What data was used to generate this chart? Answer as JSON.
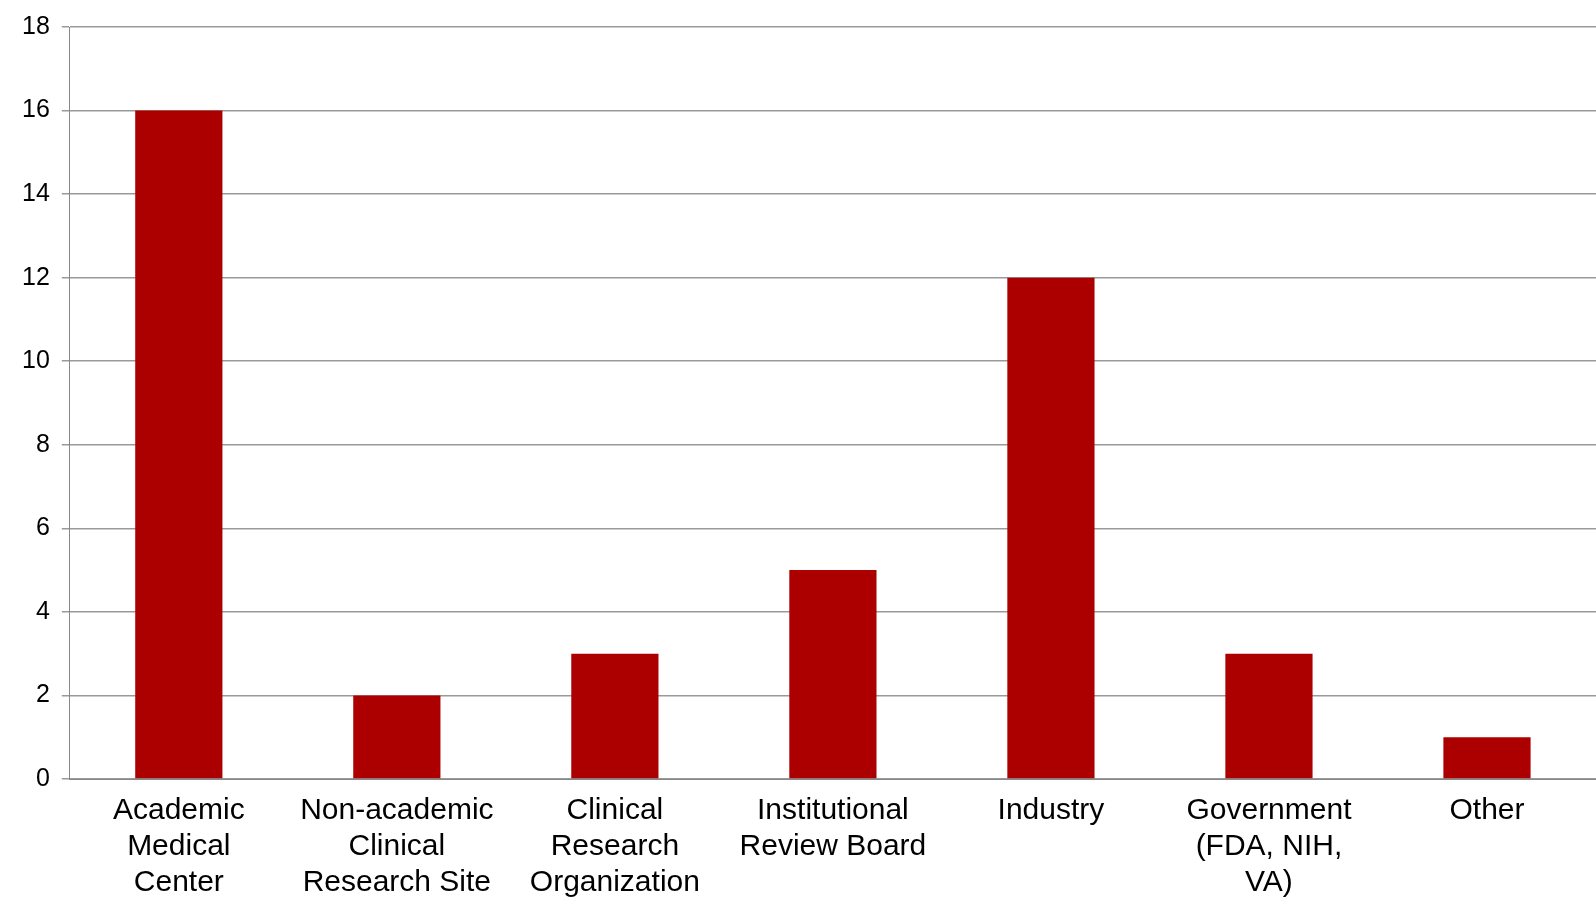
{
  "chart_data": {
    "type": "bar",
    "categories": [
      "Academic Medical Center",
      "Non-academic Clinical Research Site",
      "Clinical Research Organization",
      "Institutional Review Board",
      "Industry",
      "Government (FDA, NIH, VA)",
      "Other"
    ],
    "values": [
      16,
      2,
      3,
      5,
      12,
      3,
      1
    ],
    "color": "#ac0000",
    "ylim": [
      0,
      18
    ],
    "yticks": [
      0,
      2,
      4,
      6,
      8,
      10,
      12,
      14,
      16,
      18
    ],
    "grid": "y"
  }
}
